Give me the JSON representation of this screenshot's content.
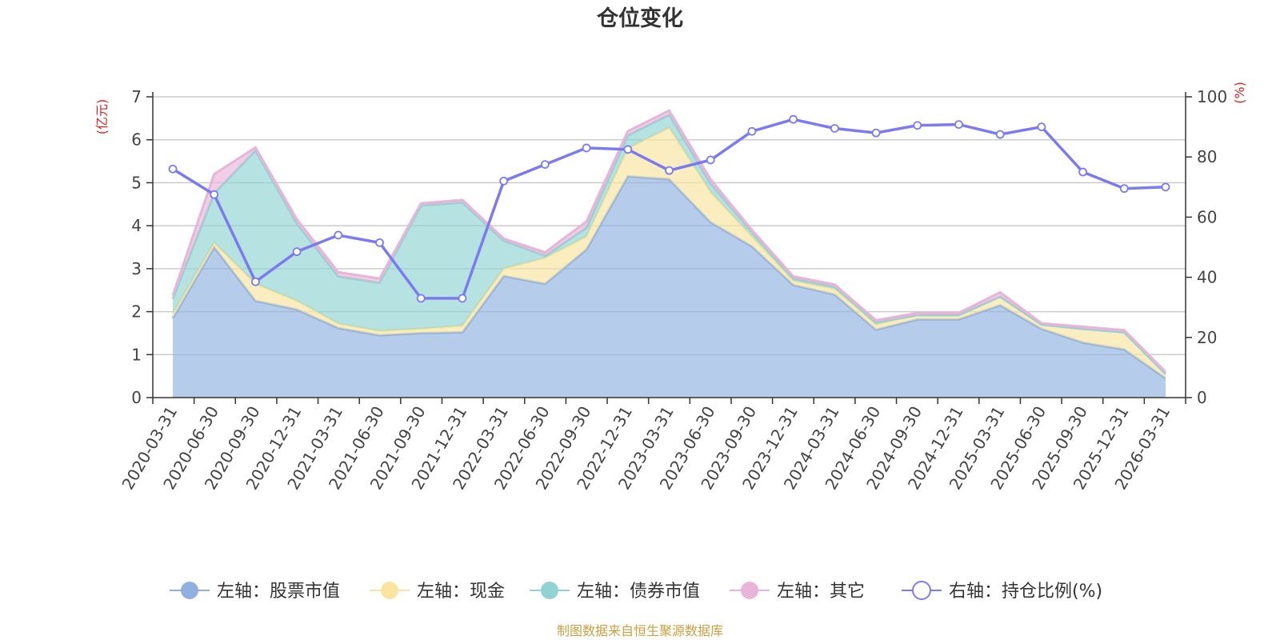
{
  "chart_data": {
    "type": "area",
    "title": "仓位变化",
    "source": "制图数据来自恒生聚源数据库",
    "left_unit": "(亿元)",
    "right_unit": "(%)",
    "left_ylim": [
      0,
      7
    ],
    "left_ticks": [
      "0",
      "1",
      "2",
      "3",
      "4",
      "5",
      "6",
      "7"
    ],
    "right_ylim": [
      0,
      100
    ],
    "right_ticks": [
      "0",
      "20",
      "40",
      "60",
      "80",
      "100"
    ],
    "grid": true,
    "legend_position": "bottom",
    "categories": [
      "2020-03-31",
      "2020-06-30",
      "2020-09-30",
      "2020-12-31",
      "2021-03-31",
      "2021-06-30",
      "2021-09-30",
      "2021-12-31",
      "2022-03-31",
      "2022-06-30",
      "2022-09-30",
      "2022-12-31",
      "2023-03-31",
      "2023-06-30",
      "2023-09-30",
      "2023-12-31",
      "2024-03-31",
      "2024-06-30",
      "2024-09-30",
      "2024-12-31",
      "2025-03-31",
      "2025-06-30",
      "2025-09-30",
      "2025-12-31",
      "2026-03-31"
    ],
    "series": [
      {
        "name": "左轴：股票市值",
        "axis": "left",
        "color": "#8fb0e0",
        "values": [
          1.85,
          3.5,
          2.25,
          2.05,
          1.62,
          1.45,
          1.5,
          1.52,
          2.83,
          2.65,
          3.45,
          5.15,
          5.08,
          4.08,
          3.52,
          2.62,
          2.4,
          1.58,
          1.82,
          1.82,
          2.15,
          1.6,
          1.28,
          1.12,
          0.45
        ]
      },
      {
        "name": "左轴：现金",
        "axis": "left",
        "color": "#f7e5a0",
        "values": [
          0.1,
          0.1,
          0.4,
          0.2,
          0.1,
          0.1,
          0.1,
          0.15,
          0.17,
          0.6,
          0.3,
          0.65,
          1.2,
          0.7,
          0.23,
          0.1,
          0.13,
          0.12,
          0.1,
          0.1,
          0.2,
          0.1,
          0.32,
          0.4,
          0.1
        ]
      },
      {
        "name": "左轴：债券市值",
        "axis": "left",
        "color": "#91d3d3",
        "values": [
          0.35,
          1.15,
          3.1,
          1.8,
          1.1,
          1.12,
          2.87,
          2.87,
          0.65,
          0.05,
          0.2,
          0.3,
          0.3,
          0.2,
          0.1,
          0.05,
          0.05,
          0.05,
          0,
          0,
          0,
          0,
          0,
          0,
          0
        ]
      },
      {
        "name": "左轴：其它",
        "axis": "left",
        "color": "#e8b4d8",
        "values": [
          0.08,
          0.45,
          0.07,
          0.1,
          0.1,
          0.1,
          0.05,
          0.06,
          0.05,
          0.08,
          0.15,
          0.1,
          0.1,
          0.1,
          0.05,
          0.05,
          0.05,
          0.05,
          0.05,
          0.05,
          0.1,
          0.03,
          0.05,
          0.05,
          0.05
        ]
      },
      {
        "name": "右轴：持仓比例(%)",
        "axis": "right",
        "color": "#7b7bef",
        "type": "line",
        "values": [
          76,
          67.5,
          38.5,
          48.5,
          54,
          51.5,
          33,
          33,
          72,
          77.5,
          83,
          82.5,
          75.5,
          79,
          88.5,
          92.5,
          89.5,
          88,
          90.5,
          90.8,
          87.5,
          90,
          75,
          69.5,
          70
        ]
      }
    ]
  }
}
